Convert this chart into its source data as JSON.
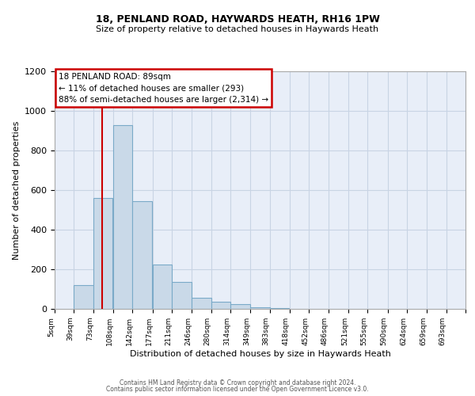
{
  "title1": "18, PENLAND ROAD, HAYWARDS HEATH, RH16 1PW",
  "title2": "Size of property relative to detached houses in Haywards Heath",
  "xlabel": "Distribution of detached houses by size in Haywards Heath",
  "ylabel": "Number of detached properties",
  "bin_edges": [
    5,
    39,
    73,
    108,
    142,
    177,
    211,
    246,
    280,
    314,
    349,
    383,
    418,
    452,
    486,
    521,
    555,
    590,
    624,
    659,
    693
  ],
  "bar_heights": [
    0,
    120,
    560,
    930,
    545,
    225,
    135,
    55,
    35,
    25,
    10,
    5,
    0,
    0,
    0,
    0,
    0,
    0,
    0,
    0
  ],
  "bar_color": "#c9d9e8",
  "bar_edge_color": "#7aaac8",
  "red_line_x": 89,
  "annotation_text": "18 PENLAND ROAD: 89sqm\n← 11% of detached houses are smaller (293)\n88% of semi-detached houses are larger (2,314) →",
  "annotation_box_color": "white",
  "annotation_box_edge_color": "#cc0000",
  "red_line_color": "#cc0000",
  "ylim": [
    0,
    1200
  ],
  "yticks": [
    0,
    200,
    400,
    600,
    800,
    1000,
    1200
  ],
  "tick_labels": [
    "5sqm",
    "39sqm",
    "73sqm",
    "108sqm",
    "142sqm",
    "177sqm",
    "211sqm",
    "246sqm",
    "280sqm",
    "314sqm",
    "349sqm",
    "383sqm",
    "418sqm",
    "452sqm",
    "486sqm",
    "521sqm",
    "555sqm",
    "590sqm",
    "624sqm",
    "659sqm",
    "693sqm"
  ],
  "footer1": "Contains HM Land Registry data © Crown copyright and database right 2024.",
  "footer2": "Contains public sector information licensed under the Open Government Licence v3.0.",
  "grid_color": "#c8d4e4",
  "bg_color": "#e8eef8"
}
